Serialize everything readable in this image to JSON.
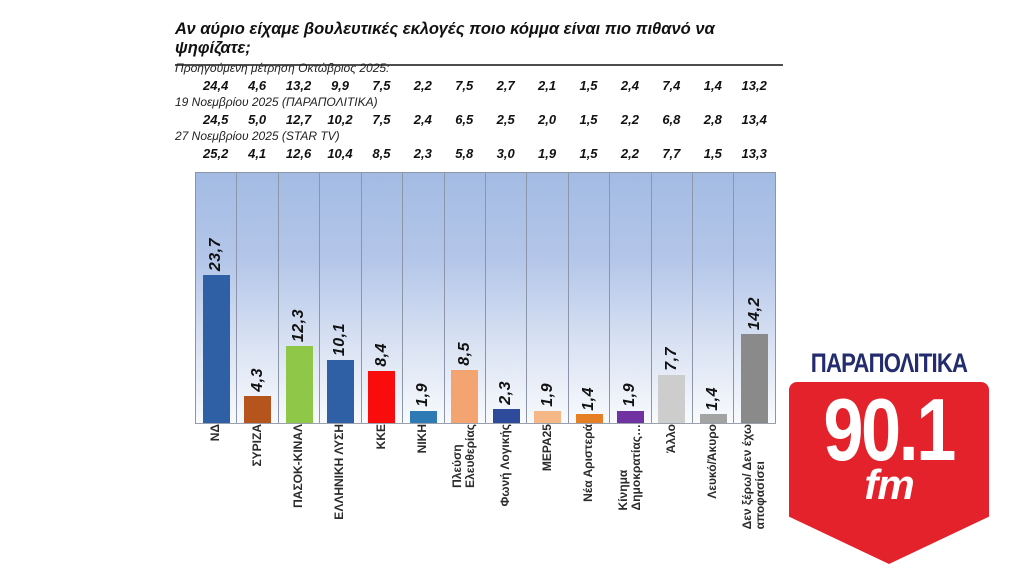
{
  "title": "Αν αύριο είχαμε βουλευτικές εκλογές ποιο κόμμα είναι πιο πιθανό να ψηφίζατε;",
  "previous_measurements": [
    {
      "label": "Προηγούμενη μέτρηση Οκτώβριος 2025:",
      "values": [
        "24,4",
        "4,6",
        "13,2",
        "9,9",
        "7,5",
        "2,2",
        "7,5",
        "2,7",
        "2,1",
        "1,5",
        "2,4",
        "7,4",
        "1,4",
        "13,2"
      ]
    },
    {
      "label": "19 Νοεμβρίου 2025 (ΠΑΡΑΠΟΛΙΤΙΚΑ)",
      "values": [
        "24,5",
        "5,0",
        "12,7",
        "10,2",
        "7,5",
        "2,4",
        "6,5",
        "2,5",
        "2,0",
        "1,5",
        "2,2",
        "6,8",
        "2,8",
        "13,4"
      ]
    },
    {
      "label": "27 Νοεμβρίου 2025 (STAR TV)",
      "values": [
        "25,2",
        "4,1",
        "12,6",
        "10,4",
        "8,5",
        "2,3",
        "5,8",
        "3,0",
        "1,9",
        "1,5",
        "2,2",
        "7,7",
        "1,5",
        "13,3"
      ]
    }
  ],
  "chart_data": {
    "type": "bar",
    "title": "Αν αύριο είχαμε βουλευτικές εκλογές ποιο κόμμα είναι πιο πιθανό να ψηφίζατε;",
    "categories": [
      "ΝΔ",
      "ΣΥΡΙΖΑ",
      "ΠΑΣΟΚ-ΚΙΝΑΛ",
      "ΕΛΛΗΝΙΚΗ ΛΥΣΗ",
      "ΚΚΕ",
      "ΝΙΚΗ",
      "Πλεύση\nΕλευθερίας",
      "Φωνή Λογικής",
      "ΜΕΡΑ25",
      "Νέα Αριστερά",
      "Κίνημα\nΔημοκρατίας…",
      "Άλλο",
      "Λευκό/Άκυρο",
      "Δεν ξέρω/ Δεν έχω\nαποφασίσει"
    ],
    "values": [
      23.7,
      4.3,
      12.3,
      10.1,
      8.4,
      1.9,
      8.5,
      2.3,
      1.9,
      1.4,
      1.9,
      7.7,
      1.4,
      14.2
    ],
    "value_labels": [
      "23,7",
      "4,3",
      "12,3",
      "10,1",
      "8,4",
      "1,9",
      "8,5",
      "2,3",
      "1,9",
      "1,4",
      "1,9",
      "7,7",
      "1,4",
      "14,2"
    ],
    "bar_colors": [
      "#2f5fa5",
      "#b5551d",
      "#8fc848",
      "#2f5fa5",
      "#f90c0c",
      "#2d7ab4",
      "#f3a471",
      "#2e4b9b",
      "#f6b787",
      "#e67e25",
      "#7132a1",
      "#cdcdcd",
      "#a3a3a3",
      "#8a8a8a"
    ],
    "xlabel": "",
    "ylabel": "",
    "ylim": [
      0,
      40
    ],
    "grid": "vertical-category-separators",
    "legend": "none",
    "plot_background_top": "#a3bbe3",
    "plot_background_bottom": "#f8fafd"
  },
  "logo": {
    "brand": "ΠΑΡΑΠΟΛΙΤΙΚΑ",
    "frequency": "90.1",
    "band": "fm",
    "badge_color": "#e3222b",
    "brand_color": "#232d6e"
  }
}
